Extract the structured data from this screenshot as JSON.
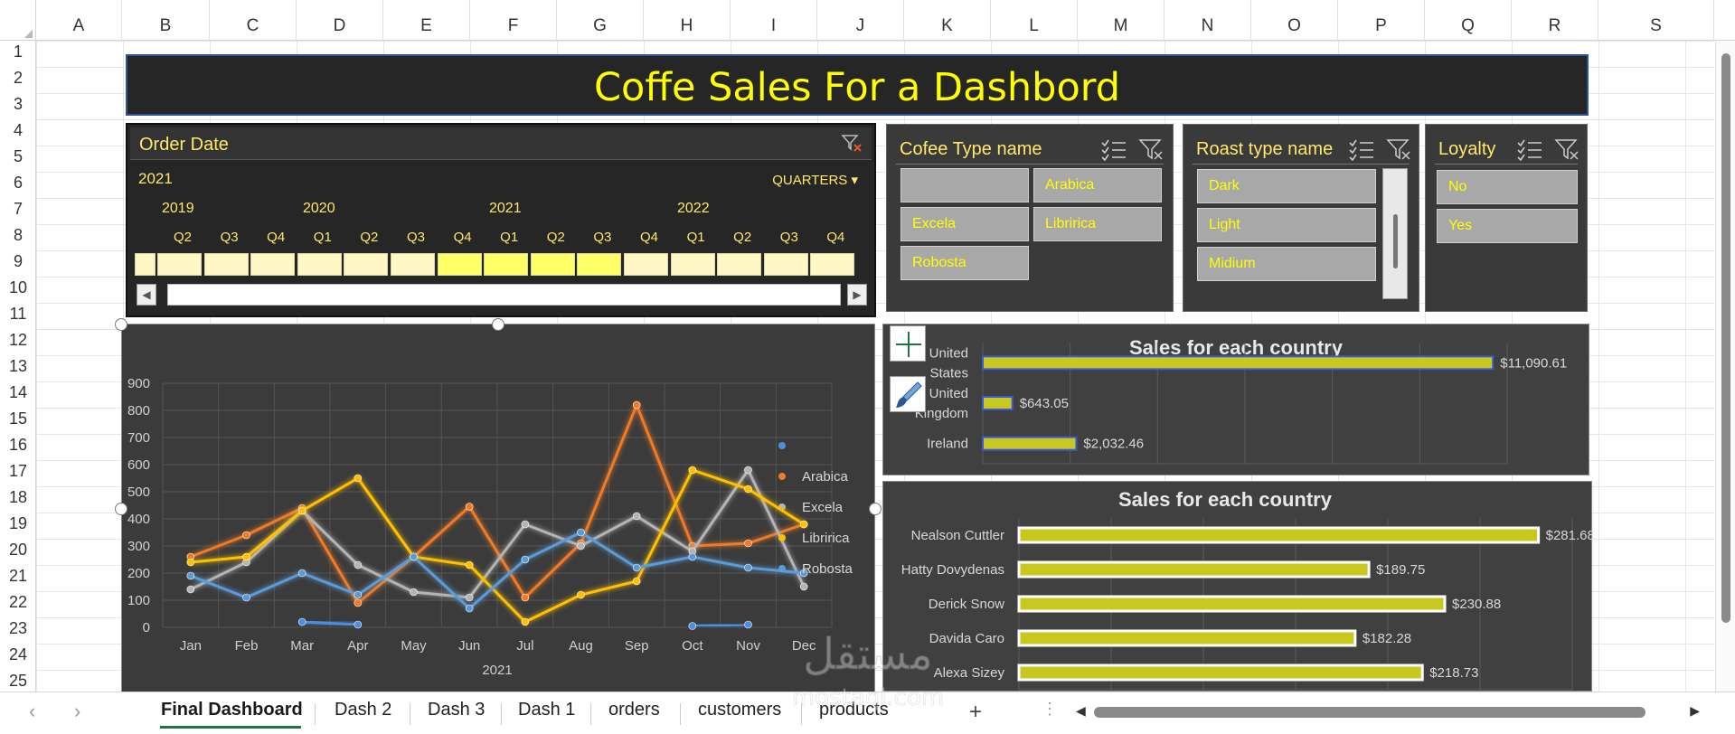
{
  "columns": [
    "A",
    "B",
    "C",
    "D",
    "E",
    "F",
    "G",
    "H",
    "I",
    "J",
    "K",
    "L",
    "M",
    "N",
    "O",
    "P",
    "Q",
    "R",
    "S"
  ],
  "rows": [
    "1",
    "2",
    "3",
    "4",
    "5",
    "6",
    "7",
    "8",
    "9",
    "10",
    "11",
    "12",
    "13",
    "14",
    "15",
    "16",
    "17",
    "18",
    "19",
    "20",
    "21",
    "22",
    "23",
    "24",
    "25"
  ],
  "dashboard": {
    "title": "Coffe Sales For a Dashbord"
  },
  "timeline": {
    "title": "Order Date",
    "selected_year": "2021",
    "level": "QUARTERS",
    "years": [
      "2019",
      "2020",
      "2021",
      "2022"
    ],
    "quarters": [
      "Q2",
      "Q3",
      "Q4",
      "Q1",
      "Q2",
      "Q3",
      "Q4",
      "Q1",
      "Q2",
      "Q3",
      "Q4",
      "Q1",
      "Q2",
      "Q3",
      "Q4"
    ],
    "selected_quarters": [
      7,
      8,
      9,
      10
    ]
  },
  "slicers": {
    "coffee_type": {
      "title": "Cofee Type name",
      "items": [
        "",
        "Arabica",
        "Excela",
        "Libririca",
        "Robosta"
      ]
    },
    "roast_type": {
      "title": "Roast type name",
      "items": [
        "Dark",
        "Light",
        "Midium"
      ]
    },
    "loyalty": {
      "title": "Loyalty",
      "items": [
        "No",
        "Yes"
      ]
    }
  },
  "chart_data": [
    {
      "type": "line",
      "xlabel": "2021",
      "ylim": [
        0,
        900
      ],
      "yticks": [
        "0",
        "100",
        "200",
        "300",
        "400",
        "500",
        "600",
        "700",
        "800",
        "900"
      ],
      "categories": [
        "Jan",
        "Feb",
        "Mar",
        "Apr",
        "May",
        "Jun",
        "Jul",
        "Aug",
        "Sep",
        "Oct",
        "Nov",
        "Dec"
      ],
      "legend_position": "right",
      "series": [
        {
          "name": "",
          "color": "#4a90e2",
          "values": [
            null,
            null,
            20,
            10,
            null,
            null,
            null,
            null,
            null,
            5,
            10,
            null
          ]
        },
        {
          "name": "Arabica",
          "color": "#f07a26",
          "values": [
            260,
            340,
            440,
            90,
            260,
            445,
            110,
            310,
            820,
            300,
            310,
            380
          ]
        },
        {
          "name": "Excela",
          "color": "#b4b4b4",
          "values": [
            140,
            240,
            430,
            230,
            130,
            110,
            380,
            300,
            410,
            280,
            580,
            150
          ]
        },
        {
          "name": "Libririca",
          "color": "#ffc000",
          "values": [
            240,
            260,
            430,
            550,
            260,
            230,
            20,
            120,
            170,
            580,
            510,
            380
          ]
        },
        {
          "name": "Robosta",
          "color": "#5b9bd5",
          "values": [
            190,
            110,
            200,
            120,
            260,
            70,
            250,
            350,
            220,
            260,
            220,
            200
          ]
        }
      ]
    },
    {
      "type": "bar",
      "title": "Sales for each country",
      "categories": [
        "United States",
        "United Kingdom",
        "Ireland"
      ],
      "values": [
        11090.61,
        643.05,
        2032.46
      ],
      "labels": [
        "$11,090.61",
        "$643.05",
        "$2,032.46"
      ],
      "color": "#c8c820"
    },
    {
      "type": "bar",
      "title": "Sales for each country",
      "categories": [
        "Nealson Cuttler",
        "Hatty Dovydenas",
        "Derick Snow",
        "Davida Caro",
        "Alexa Sizey"
      ],
      "values": [
        281.68,
        189.75,
        230.88,
        182.28,
        218.73
      ],
      "labels": [
        "$281.68",
        "$189.75",
        "$230.88",
        "$182.28",
        "$218.73"
      ],
      "color": "#c8c820"
    }
  ],
  "sheet_tabs": [
    "Final Dashboard",
    "Dash 2",
    "Dash 3",
    "Dash 1",
    "orders",
    "customers",
    "products"
  ],
  "active_tab": "Final Dashboard",
  "add_sheet": "+",
  "watermark": {
    "text_ar": "مستقل",
    "text_en": "mostaql.com"
  }
}
